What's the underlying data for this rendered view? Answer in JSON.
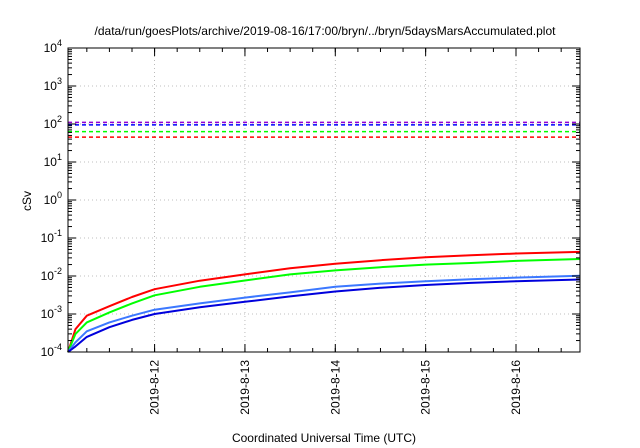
{
  "chart_data": {
    "type": "line",
    "title": "/data/run/goesPlots/archive/2019-08-16/17:00/bryn/../bryn/5daysMarsAccumulated.plot",
    "xlabel": "Coordinated Universal Time (UTC)",
    "ylabel": "cSv",
    "xlim": [
      "2019-08-11T01:00",
      "2019-08-16T17:00"
    ],
    "ylim": [
      0.0001,
      10000
    ],
    "yscale": "log",
    "grid": true,
    "x_ticks": [
      "2019-8-12",
      "2019-8-13",
      "2019-8-14",
      "2019-8-15",
      "2019-8-16"
    ],
    "y_ticks": [
      {
        "base": "10",
        "exp": "-4"
      },
      {
        "base": "10",
        "exp": "-3"
      },
      {
        "base": "10",
        "exp": "-2"
      },
      {
        "base": "10",
        "exp": "-1"
      },
      {
        "base": "10",
        "exp": "0"
      },
      {
        "base": "10",
        "exp": "1"
      },
      {
        "base": "10",
        "exp": "2"
      },
      {
        "base": "10",
        "exp": "3"
      },
      {
        "base": "10",
        "exp": "4"
      }
    ],
    "thresholds": [
      {
        "color": "#9400d3",
        "value": 110
      },
      {
        "color": "#0000ff",
        "value": 95
      },
      {
        "color": "#00ff00",
        "value": 63
      },
      {
        "color": "#ff0000",
        "value": 45
      }
    ],
    "series": [
      {
        "color": "#ff0000",
        "x": [
          "2019-08-11T01:00",
          "2019-08-11T03:00",
          "2019-08-11T06:00",
          "2019-08-11T12:00",
          "2019-08-11T18:00",
          "2019-08-12T00:00",
          "2019-08-12T12:00",
          "2019-08-13T00:00",
          "2019-08-13T12:00",
          "2019-08-14T00:00",
          "2019-08-14T12:00",
          "2019-08-15T00:00",
          "2019-08-15T12:00",
          "2019-08-16T00:00",
          "2019-08-16T17:00"
        ],
        "values": [
          0.0001,
          0.0004,
          0.0009,
          0.0016,
          0.0028,
          0.0045,
          0.0075,
          0.011,
          0.016,
          0.021,
          0.026,
          0.031,
          0.035,
          0.039,
          0.043
        ]
      },
      {
        "color": "#00ff00",
        "x": [
          "2019-08-11T01:00",
          "2019-08-11T03:00",
          "2019-08-11T06:00",
          "2019-08-11T12:00",
          "2019-08-11T18:00",
          "2019-08-12T00:00",
          "2019-08-12T12:00",
          "2019-08-13T00:00",
          "2019-08-13T12:00",
          "2019-08-14T00:00",
          "2019-08-14T12:00",
          "2019-08-15T00:00",
          "2019-08-15T12:00",
          "2019-08-16T00:00",
          "2019-08-16T17:00"
        ],
        "values": [
          0.0001,
          0.0003,
          0.0006,
          0.0011,
          0.0019,
          0.0031,
          0.0052,
          0.0076,
          0.011,
          0.014,
          0.017,
          0.02,
          0.022,
          0.025,
          0.028
        ]
      },
      {
        "color": "#3c78ff",
        "x": [
          "2019-08-11T01:00",
          "2019-08-11T03:00",
          "2019-08-11T06:00",
          "2019-08-11T12:00",
          "2019-08-11T18:00",
          "2019-08-12T00:00",
          "2019-08-12T12:00",
          "2019-08-13T00:00",
          "2019-08-13T12:00",
          "2019-08-14T00:00",
          "2019-08-14T12:00",
          "2019-08-15T00:00",
          "2019-08-15T12:00",
          "2019-08-16T00:00",
          "2019-08-16T17:00"
        ],
        "values": [
          0.0001,
          0.00018,
          0.00035,
          0.0006,
          0.0009,
          0.0013,
          0.0019,
          0.0027,
          0.0037,
          0.0052,
          0.0063,
          0.0073,
          0.0082,
          0.0091,
          0.0102
        ]
      },
      {
        "color": "#0000dc",
        "x": [
          "2019-08-11T01:00",
          "2019-08-11T03:00",
          "2019-08-11T06:00",
          "2019-08-11T12:00",
          "2019-08-11T18:00",
          "2019-08-12T00:00",
          "2019-08-12T12:00",
          "2019-08-13T00:00",
          "2019-08-13T12:00",
          "2019-08-14T00:00",
          "2019-08-14T12:00",
          "2019-08-15T00:00",
          "2019-08-15T12:00",
          "2019-08-16T00:00",
          "2019-08-16T17:00"
        ],
        "values": [
          0.0001,
          0.00014,
          0.00025,
          0.00045,
          0.0007,
          0.001,
          0.0015,
          0.0021,
          0.0029,
          0.0039,
          0.0049,
          0.0058,
          0.0066,
          0.0073,
          0.0081
        ]
      }
    ]
  }
}
